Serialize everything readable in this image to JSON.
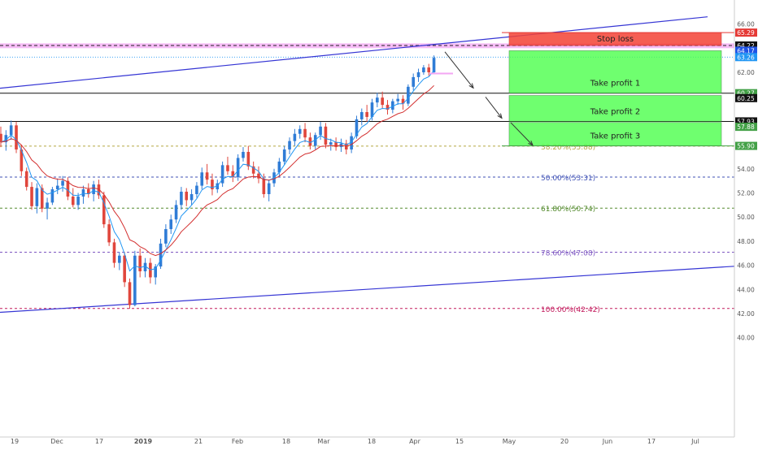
{
  "chart_data": {
    "type": "candlestick",
    "title": "",
    "xlabel": "",
    "ylabel": "",
    "ylim": [
      40.0,
      66.6
    ],
    "grid": false,
    "x_tick_labels": [
      "19",
      "Dec",
      "17",
      "2019",
      "21",
      "Feb",
      "18",
      "Mar",
      "18",
      "Apr",
      "15",
      "May",
      "20",
      "Jun",
      "17",
      "Jul"
    ],
    "y_tick_labels": [
      "66.00",
      "64.00",
      "62.00",
      "60.00",
      "58.00",
      "56.00",
      "54.00",
      "52.00",
      "50.00",
      "48.00",
      "46.00",
      "44.00",
      "42.00",
      "40.00"
    ],
    "price_tags": [
      {
        "label": "65.29",
        "value": 65.29,
        "color": "#e53935"
      },
      {
        "label": "64.22",
        "value": 64.22,
        "color": "#111111"
      },
      {
        "label": "64.17",
        "value": 63.79,
        "color": "#1e53e5"
      },
      {
        "label": "63.26",
        "value": 63.26,
        "color": "#2196f3"
      },
      {
        "label": "60.27",
        "value": 60.27,
        "color": "#43a047"
      },
      {
        "label": "60.25",
        "value": 59.86,
        "color": "#111111"
      },
      {
        "label": "57.93",
        "value": 57.93,
        "color": "#111111"
      },
      {
        "label": "57.88",
        "value": 57.48,
        "color": "#43a047"
      },
      {
        "label": "55.90",
        "value": 55.9,
        "color": "#43a047"
      }
    ],
    "fibonacci_levels": [
      {
        "label": "38.20%(55.88)",
        "value": 55.88,
        "color": "#b5a642"
      },
      {
        "label": "50.00%(53.31)",
        "value": 53.31,
        "color": "#3f51b5"
      },
      {
        "label": "61.80%(50.74)",
        "value": 50.74,
        "color": "#558b2f"
      },
      {
        "label": "78.60%(47.08)",
        "value": 47.08,
        "color": "#7e57c2"
      },
      {
        "label": "100.00%(42.42)",
        "value": 42.42,
        "color": "#c2185b"
      }
    ],
    "horizontal_levels": [
      64.22,
      60.27,
      57.93
    ],
    "trade_zones": [
      {
        "label": "Stop loss",
        "from": 64.22,
        "to": 65.29,
        "color": "#f44336"
      },
      {
        "label": "Take profit 1",
        "from": 60.27,
        "to": 63.79,
        "color": "#4cff4c"
      },
      {
        "label": "Take profit 2",
        "from": 57.93,
        "to": 60.08,
        "color": "#4cff4c"
      },
      {
        "label": "Take profit 3",
        "from": 55.9,
        "to": 57.85,
        "color": "#4cff4c"
      }
    ],
    "candles": [
      [
        56.9,
        57.5,
        55.8,
        56.2
      ],
      [
        56.2,
        57.2,
        55.5,
        56.8
      ],
      [
        56.8,
        58.0,
        56.4,
        57.6
      ],
      [
        57.6,
        57.9,
        55.3,
        55.6
      ],
      [
        55.6,
        56.0,
        53.4,
        53.8
      ],
      [
        53.8,
        54.1,
        52.2,
        52.5
      ],
      [
        52.5,
        52.9,
        50.6,
        50.9
      ],
      [
        50.9,
        52.8,
        50.3,
        52.4
      ],
      [
        52.4,
        52.7,
        50.4,
        50.7
      ],
      [
        50.7,
        51.6,
        49.8,
        51.2
      ],
      [
        51.2,
        52.5,
        51.0,
        52.3
      ],
      [
        52.3,
        53.2,
        51.9,
        52.6
      ],
      [
        52.6,
        53.4,
        52.1,
        53.0
      ],
      [
        53.0,
        53.3,
        51.4,
        51.7
      ],
      [
        51.7,
        52.4,
        50.8,
        51.0
      ],
      [
        51.0,
        52.0,
        50.6,
        51.7
      ],
      [
        51.7,
        52.6,
        51.1,
        52.3
      ],
      [
        52.3,
        52.8,
        51.6,
        51.9
      ],
      [
        51.9,
        53.0,
        51.3,
        52.7
      ],
      [
        52.7,
        53.1,
        51.5,
        51.8
      ],
      [
        51.8,
        52.1,
        49.1,
        49.4
      ],
      [
        49.4,
        49.8,
        47.6,
        47.9
      ],
      [
        47.9,
        48.2,
        45.8,
        46.2
      ],
      [
        46.2,
        47.1,
        45.6,
        46.8
      ],
      [
        46.8,
        47.1,
        44.2,
        44.6
      ],
      [
        44.6,
        44.9,
        42.4,
        42.7
      ],
      [
        42.7,
        47.2,
        42.6,
        46.8
      ],
      [
        46.8,
        47.4,
        45.0,
        45.5
      ],
      [
        45.5,
        46.6,
        45.0,
        46.2
      ],
      [
        46.2,
        46.6,
        44.5,
        45.0
      ],
      [
        45.0,
        46.1,
        44.4,
        45.9
      ],
      [
        45.9,
        48.2,
        45.7,
        47.8
      ],
      [
        47.8,
        49.4,
        47.5,
        49.0
      ],
      [
        49.0,
        50.2,
        48.6,
        49.8
      ],
      [
        49.8,
        51.4,
        49.5,
        51.0
      ],
      [
        51.0,
        52.5,
        50.6,
        52.1
      ],
      [
        52.1,
        52.4,
        50.9,
        51.4
      ],
      [
        51.4,
        52.3,
        51.0,
        51.9
      ],
      [
        51.9,
        52.9,
        51.6,
        52.6
      ],
      [
        52.6,
        54.1,
        52.3,
        53.7
      ],
      [
        53.7,
        54.4,
        52.7,
        53.1
      ],
      [
        53.1,
        53.6,
        51.8,
        52.3
      ],
      [
        52.3,
        53.1,
        52.0,
        52.8
      ],
      [
        52.8,
        54.6,
        52.5,
        54.3
      ],
      [
        54.3,
        55.0,
        53.5,
        53.8
      ],
      [
        53.8,
        54.3,
        52.9,
        53.3
      ],
      [
        53.3,
        55.2,
        53.0,
        54.9
      ],
      [
        54.9,
        55.8,
        54.6,
        55.4
      ],
      [
        55.4,
        55.9,
        53.9,
        54.2
      ],
      [
        54.2,
        54.6,
        53.2,
        53.6
      ],
      [
        53.6,
        54.2,
        52.8,
        53.2
      ],
      [
        53.2,
        53.6,
        51.6,
        51.9
      ],
      [
        51.9,
        53.1,
        51.3,
        52.8
      ],
      [
        52.8,
        54.0,
        52.5,
        53.7
      ],
      [
        53.7,
        54.9,
        53.4,
        54.6
      ],
      [
        54.6,
        55.9,
        54.3,
        55.6
      ],
      [
        55.6,
        56.6,
        55.2,
        56.3
      ],
      [
        56.3,
        57.3,
        55.9,
        56.9
      ],
      [
        56.9,
        57.6,
        56.5,
        57.3
      ],
      [
        57.3,
        57.8,
        56.2,
        56.6
      ],
      [
        56.6,
        57.0,
        55.6,
        55.9
      ],
      [
        55.9,
        57.0,
        55.6,
        56.8
      ],
      [
        56.8,
        57.9,
        56.4,
        57.5
      ],
      [
        57.5,
        57.8,
        55.7,
        56.0
      ],
      [
        56.0,
        56.5,
        55.5,
        56.2
      ],
      [
        56.2,
        56.6,
        55.5,
        55.8
      ],
      [
        55.8,
        56.5,
        55.4,
        56.1
      ],
      [
        56.1,
        56.4,
        55.2,
        55.6
      ],
      [
        55.6,
        57.0,
        55.3,
        56.7
      ],
      [
        56.7,
        58.4,
        56.5,
        58.1
      ],
      [
        58.1,
        59.0,
        57.6,
        58.7
      ],
      [
        58.7,
        59.3,
        57.9,
        58.3
      ],
      [
        58.3,
        59.8,
        58.0,
        59.5
      ],
      [
        59.5,
        60.3,
        59.1,
        59.9
      ],
      [
        59.9,
        60.4,
        59.0,
        59.3
      ],
      [
        59.3,
        59.7,
        58.5,
        58.9
      ],
      [
        58.9,
        59.8,
        58.6,
        59.6
      ],
      [
        59.6,
        60.2,
        59.3,
        59.8
      ],
      [
        59.8,
        60.1,
        58.9,
        59.4
      ],
      [
        59.4,
        61.0,
        59.2,
        60.8
      ],
      [
        60.8,
        61.9,
        60.5,
        61.6
      ],
      [
        61.6,
        62.3,
        61.2,
        62.0
      ],
      [
        62.0,
        62.6,
        61.8,
        62.4
      ],
      [
        62.4,
        62.7,
        61.7,
        62.0
      ],
      [
        62.0,
        63.4,
        61.9,
        63.2
      ]
    ]
  }
}
